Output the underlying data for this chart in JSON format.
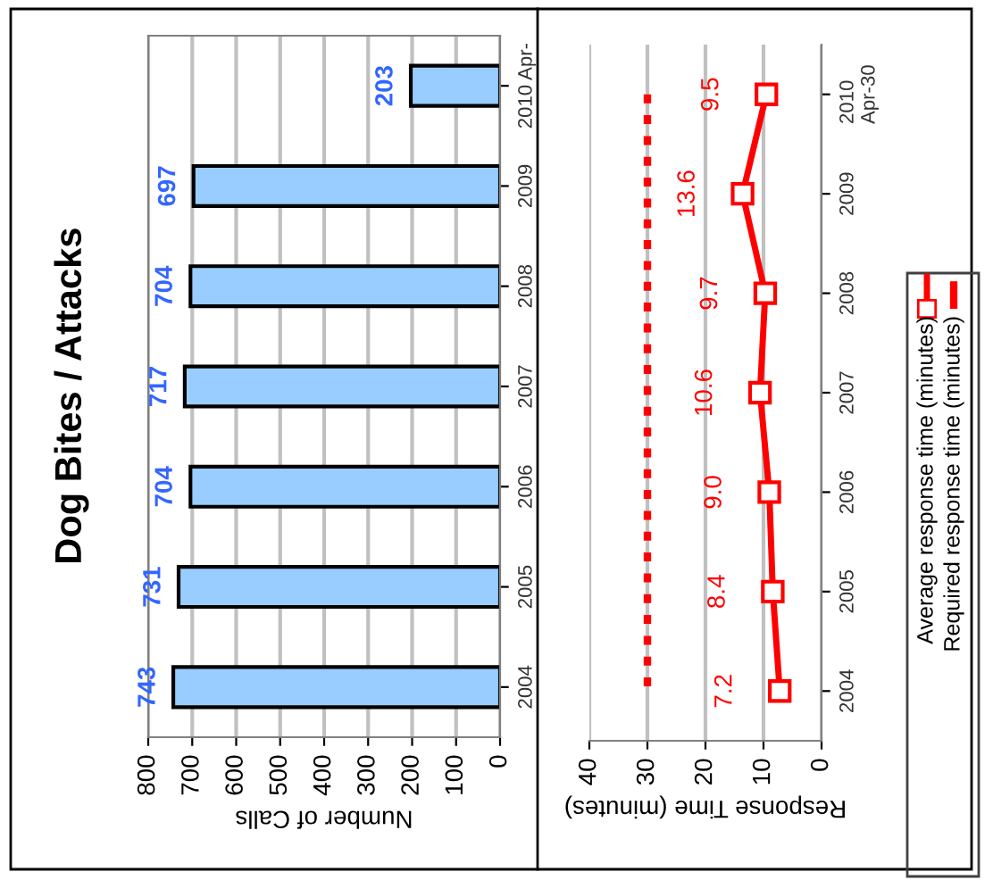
{
  "chart_data": [
    {
      "type": "bar",
      "title": "Dog Bites / Attacks",
      "orientation": "horizontal",
      "xlabel": "Number of Calls",
      "categories": [
        "2010 Apr-",
        "2009",
        "2008",
        "2007",
        "2006",
        "2005",
        "2004"
      ],
      "values": [
        203,
        697,
        704,
        717,
        704,
        731,
        743
      ],
      "color": "#99ccff",
      "data_labels": true,
      "xlim": [
        800,
        0
      ],
      "xticks": [
        800,
        700,
        600,
        500,
        400,
        300,
        200,
        100,
        0
      ],
      "grid": "x"
    },
    {
      "type": "line",
      "orientation": "horizontal",
      "xlabel": "Response Time (minutes)",
      "categories": [
        "2010\nApr-30",
        "2009",
        "2008",
        "2007",
        "2006",
        "2005",
        "2004"
      ],
      "series": [
        {
          "name": "Average response time (minutes)",
          "color": "#ff0000",
          "marker": "square",
          "line_style": "solid",
          "values": [
            9.5,
            13.6,
            9.7,
            10.6,
            9.0,
            8.4,
            7.2
          ],
          "value_labels": [
            "9.5",
            "13.6",
            "9.7",
            "10.6",
            "9.0",
            "8.4",
            "7.2"
          ]
        },
        {
          "name": "Required response time (minutes)",
          "color": "#ff0000",
          "marker": "none",
          "line_style": "dashed",
          "values": [
            30,
            30,
            30,
            30,
            30,
            30,
            30
          ]
        }
      ],
      "xlim": [
        40,
        0
      ],
      "xticks": [
        40,
        30,
        20,
        10,
        0
      ],
      "grid": "x",
      "legend": "right"
    }
  ]
}
